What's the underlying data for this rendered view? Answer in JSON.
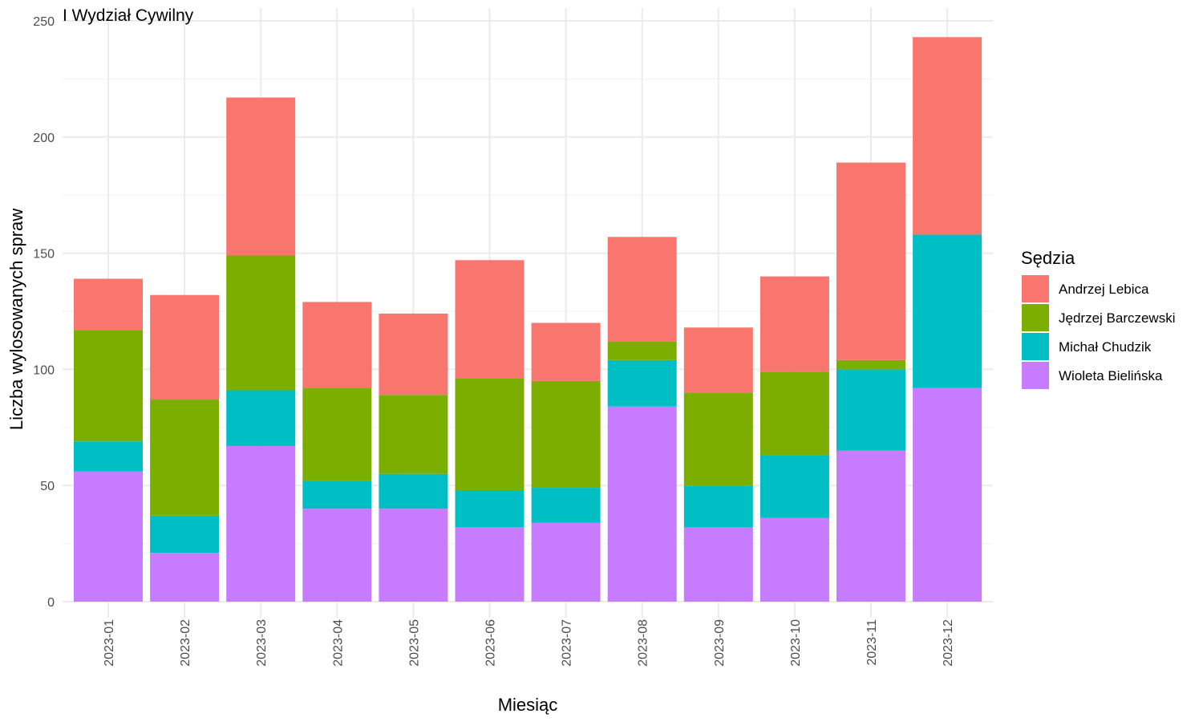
{
  "chart_data": {
    "type": "bar",
    "stacked": true,
    "title": "I Wydział Cywilny",
    "xlabel": "Miesiąc",
    "ylabel": "Liczba wylosowanych spraw",
    "ylim": [
      0,
      250
    ],
    "yticks": [
      0,
      50,
      100,
      150,
      200,
      250
    ],
    "grid": true,
    "legend_position": "right",
    "legend_title": "Sędzia",
    "categories": [
      "2023-01",
      "2023-02",
      "2023-03",
      "2023-04",
      "2023-05",
      "2023-06",
      "2023-07",
      "2023-08",
      "2023-09",
      "2023-10",
      "2023-11",
      "2023-12"
    ],
    "series": [
      {
        "name": "Wioleta Bielińska",
        "color": "#C77CFF",
        "values": [
          56,
          21,
          67,
          40,
          40,
          32,
          34,
          84,
          32,
          36,
          65,
          92
        ]
      },
      {
        "name": "Michał Chudzik",
        "color": "#00BFC4",
        "values": [
          13,
          16,
          24,
          12,
          15,
          16,
          15,
          20,
          18,
          27,
          35,
          66
        ]
      },
      {
        "name": "Jędrzej Barczewski",
        "color": "#7CAE00",
        "values": [
          48,
          50,
          58,
          40,
          34,
          48,
          46,
          8,
          40,
          36,
          4,
          0
        ]
      },
      {
        "name": "Andrzej Lebica",
        "color": "#F8766D",
        "values": [
          22,
          45,
          68,
          37,
          35,
          51,
          25,
          45,
          28,
          41,
          85,
          85
        ]
      }
    ],
    "legend_order": [
      "Andrzej Lebica",
      "Jędrzej Barczewski",
      "Michał Chudzik",
      "Wioleta Bielińska"
    ]
  }
}
